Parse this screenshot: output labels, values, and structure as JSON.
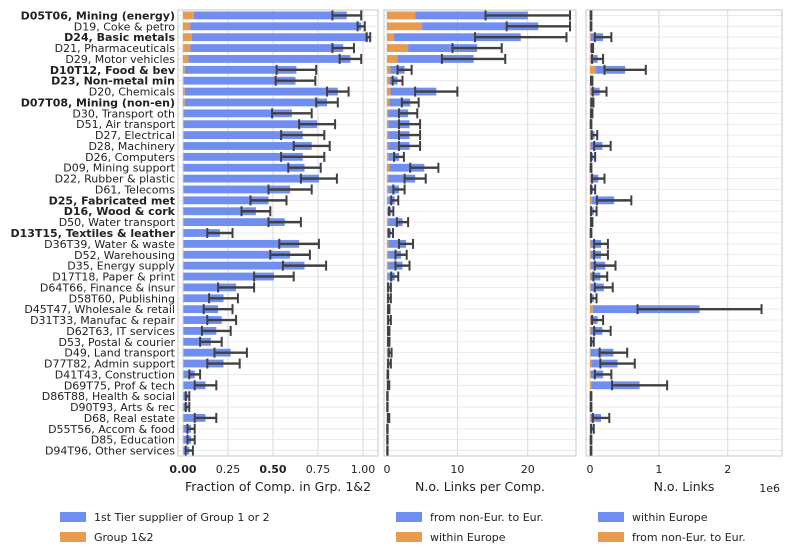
{
  "colors": {
    "blue": "#6f8ef0",
    "orange": "#e89a4f",
    "err": "#404040",
    "grid": "#cfcfcf",
    "axis": "#c8c8c8"
  },
  "categories": [
    {
      "label": "D05T06, Mining (energy)",
      "bold": true
    },
    {
      "label": "D19, Coke & petro",
      "bold": false
    },
    {
      "label": "D24, Basic metals",
      "bold": true
    },
    {
      "label": "D21, Pharmaceuticals",
      "bold": false
    },
    {
      "label": "D29, Motor vehicles",
      "bold": false
    },
    {
      "label": "D10T12, Food & bev",
      "bold": true
    },
    {
      "label": "D23, Non-metal min",
      "bold": true
    },
    {
      "label": "D20, Chemicals",
      "bold": false
    },
    {
      "label": "D07T08, Mining (non-en)",
      "bold": true
    },
    {
      "label": "D30, Transport oth",
      "bold": false
    },
    {
      "label": "D51, Air transport",
      "bold": false
    },
    {
      "label": "D27, Electrical",
      "bold": false
    },
    {
      "label": "D28, Machinery",
      "bold": false
    },
    {
      "label": "D26, Computers",
      "bold": false
    },
    {
      "label": "D09, Mining support",
      "bold": false
    },
    {
      "label": "D22, Rubber & plastic",
      "bold": false
    },
    {
      "label": "D61, Telecoms",
      "bold": false
    },
    {
      "label": "D25, Fabricated met",
      "bold": true
    },
    {
      "label": "D16, Wood & cork",
      "bold": true
    },
    {
      "label": "D50, Water transport",
      "bold": false
    },
    {
      "label": "D13T15, Textiles & leather",
      "bold": true
    },
    {
      "label": "D36T39, Water & waste",
      "bold": false
    },
    {
      "label": "D52, Warehousing",
      "bold": false
    },
    {
      "label": "D35, Energy supply",
      "bold": false
    },
    {
      "label": "D17T18, Paper & print",
      "bold": false
    },
    {
      "label": "D64T66, Finance & insur",
      "bold": false
    },
    {
      "label": "D58T60, Publishing",
      "bold": false
    },
    {
      "label": "D45T47, Wholesale & retail",
      "bold": false
    },
    {
      "label": "D31T33, Manufac & repair",
      "bold": false
    },
    {
      "label": "D62T63, IT services",
      "bold": false
    },
    {
      "label": "D53, Postal & courier",
      "bold": false
    },
    {
      "label": "D49, Land transport",
      "bold": false
    },
    {
      "label": "D77T82, Admin support",
      "bold": false
    },
    {
      "label": "D41T43, Construction",
      "bold": false
    },
    {
      "label": "D69T75, Prof & tech",
      "bold": false
    },
    {
      "label": "D86T88, Health & social",
      "bold": false
    },
    {
      "label": "D90T93, Arts & rec",
      "bold": false
    },
    {
      "label": "D68, Real estate",
      "bold": false
    },
    {
      "label": "D55T56, Accom & food",
      "bold": false
    },
    {
      "label": "D85, Education",
      "bold": false
    },
    {
      "label": "D94T96, Other services",
      "bold": false
    }
  ],
  "chart_data": [
    {
      "type": "bar",
      "orientation": "horizontal",
      "stacked": true,
      "xlabel": "Fraction of Comp. in Grp. 1&2",
      "xlim": [
        0,
        1.05
      ],
      "ticks": [
        {
          "value": 0.0,
          "label": "0.00",
          "bold": true
        },
        {
          "value": 0.25,
          "label": "0.25",
          "bold": false
        },
        {
          "value": 0.5,
          "label": "0.50",
          "bold": true
        },
        {
          "value": 0.75,
          "label": "0.75",
          "bold": false
        },
        {
          "value": 1.0,
          "label": "1.00",
          "bold": false
        }
      ],
      "legend_position": "bottom",
      "series": [
        {
          "name": "1st Tier supplier of Group 1 or 2",
          "color": "blue",
          "values": [
            0.85,
            0.95,
            0.98,
            0.85,
            0.9,
            0.62,
            0.62,
            0.85,
            0.79,
            0.6,
            0.74,
            0.66,
            0.71,
            0.66,
            0.67,
            0.75,
            0.59,
            0.47,
            0.4,
            0.56,
            0.2,
            0.64,
            0.59,
            0.67,
            0.5,
            0.29,
            0.22,
            0.19,
            0.21,
            0.18,
            0.15,
            0.26,
            0.22,
            0.06,
            0.12,
            0.02,
            0.02,
            0.12,
            0.04,
            0.04,
            0.03
          ],
          "error": [
            0.08,
            0.02,
            0.01,
            0.06,
            0.06,
            0.11,
            0.11,
            0.06,
            0.06,
            0.11,
            0.1,
            0.12,
            0.1,
            0.12,
            0.09,
            0.1,
            0.12,
            0.1,
            0.08,
            0.09,
            0.07,
            0.11,
            0.11,
            0.12,
            0.11,
            0.1,
            0.08,
            0.08,
            0.08,
            0.08,
            0.06,
            0.09,
            0.09,
            0.03,
            0.06,
            0.01,
            0.01,
            0.06,
            0.02,
            0.02,
            0.02
          ]
        },
        {
          "name": "Group 1&2",
          "color": "orange",
          "values": [
            0.06,
            0.04,
            0.05,
            0.04,
            0.03,
            0.01,
            0.005,
            0.01,
            0.01,
            0.005,
            0.005,
            0.005,
            0.005,
            0.005,
            0.005,
            0.005,
            0.005,
            0.005,
            0.005,
            0.005,
            0.005,
            0.005,
            0.005,
            0.005,
            0.005,
            0.005,
            0.005,
            0.005,
            0.005,
            0.005,
            0.005,
            0.005,
            0.005,
            0.005,
            0.005,
            0.005,
            0.005,
            0.005,
            0.005,
            0.005,
            0.005
          ]
        }
      ]
    },
    {
      "type": "bar",
      "orientation": "horizontal",
      "stacked": true,
      "xlabel": "N.o. Links per Comp.",
      "xlim": [
        0,
        26
      ],
      "ticks": [
        {
          "value": 0,
          "label": "0",
          "bold": false
        },
        {
          "value": 10,
          "label": "10",
          "bold": false
        },
        {
          "value": 20,
          "label": "20",
          "bold": false
        }
      ],
      "legend_position": "bottom",
      "series": [
        {
          "name": "from non-Eur. to Eur.",
          "color": "blue",
          "values": [
            16.0,
            16.5,
            18.0,
            9.8,
            10.8,
            2.0,
            1.2,
            6.5,
            3.0,
            2.8,
            3.0,
            3.0,
            3.0,
            1.5,
            5.0,
            3.8,
            1.5,
            1.0,
            0.5,
            2.0,
            0.5,
            2.5,
            1.8,
            2.0,
            1.0,
            0.3,
            0.3,
            0.2,
            0.3,
            0.2,
            0.2,
            0.4,
            0.3,
            0.1,
            0.2,
            0.05,
            0.05,
            0.2,
            0.05,
            0.05,
            0.05
          ],
          "error": [
            6.0,
            4.5,
            6.5,
            3.5,
            4.5,
            1.0,
            0.7,
            3.0,
            1.2,
            1.3,
            1.5,
            1.5,
            1.5,
            0.7,
            2.0,
            1.5,
            0.8,
            0.5,
            0.3,
            0.8,
            0.3,
            1.0,
            0.8,
            1.0,
            0.5,
            0.2,
            0.2,
            0.1,
            0.2,
            0.1,
            0.1,
            0.2,
            0.2,
            0.05,
            0.1,
            0.03,
            0.03,
            0.1,
            0.03,
            0.03,
            0.03
          ]
        },
        {
          "name": "within Europe",
          "color": "orange",
          "values": [
            4.0,
            5.0,
            1.0,
            3.0,
            1.5,
            0.5,
            0.3,
            0.5,
            0.3,
            0.2,
            0.2,
            0.2,
            0.2,
            0.2,
            0.3,
            0.2,
            0.2,
            0.1,
            0.1,
            0.2,
            0.05,
            0.2,
            0.2,
            0.2,
            0.1,
            0.05,
            0.05,
            0.05,
            0.05,
            0.05,
            0.05,
            0.05,
            0.05,
            0.02,
            0.02,
            0.01,
            0.01,
            0.02,
            0.01,
            0.01,
            0.01
          ]
        }
      ]
    },
    {
      "type": "bar",
      "orientation": "horizontal",
      "stacked": true,
      "xlabel": "N.o. Links",
      "xlim": [
        0,
        2700000
      ],
      "scale_note": "1e6",
      "ticks": [
        {
          "value": 0,
          "label": "0",
          "bold": false
        },
        {
          "value": 1000000,
          "label": "1",
          "bold": false
        },
        {
          "value": 2000000,
          "label": "2",
          "bold": false
        }
      ],
      "legend_position": "bottom",
      "series": [
        {
          "name": "within Europe",
          "color": "blue",
          "values": [
            10000,
            10000,
            180000,
            30000,
            100000,
            430000,
            20000,
            130000,
            30000,
            20000,
            10000,
            60000,
            170000,
            40000,
            10000,
            110000,
            40000,
            330000,
            50000,
            20000,
            10000,
            150000,
            150000,
            210000,
            140000,
            190000,
            50000,
            1550000,
            100000,
            170000,
            30000,
            330000,
            380000,
            180000,
            700000,
            10000,
            10000,
            150000,
            30000,
            10000,
            10000
          ],
          "error": [
            5000,
            5000,
            120000,
            10000,
            80000,
            300000,
            10000,
            100000,
            15000,
            10000,
            5000,
            40000,
            120000,
            30000,
            5000,
            90000,
            30000,
            250000,
            40000,
            10000,
            5000,
            100000,
            100000,
            150000,
            100000,
            130000,
            40000,
            900000,
            80000,
            120000,
            20000,
            200000,
            250000,
            120000,
            400000,
            5000,
            5000,
            120000,
            20000,
            5000,
            5000
          ]
        },
        {
          "name": "from non-Eur. to Eur.",
          "color": "orange",
          "values": [
            5000,
            5000,
            10000,
            5000,
            10000,
            80000,
            5000,
            10000,
            5000,
            5000,
            5000,
            5000,
            10000,
            5000,
            5000,
            10000,
            5000,
            20000,
            5000,
            5000,
            5000,
            10000,
            10000,
            10000,
            10000,
            10000,
            5000,
            40000,
            10000,
            10000,
            5000,
            10000,
            20000,
            10000,
            20000,
            5000,
            5000,
            10000,
            5000,
            5000,
            5000
          ]
        }
      ]
    }
  ]
}
